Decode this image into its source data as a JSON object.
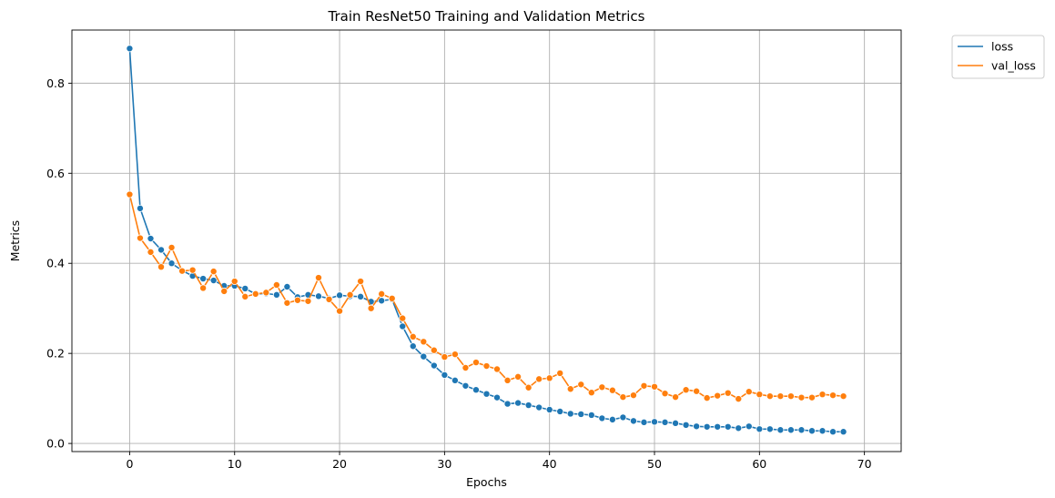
{
  "chart_data": {
    "type": "line",
    "title": "Train ResNet50 Training and Validation Metrics",
    "xlabel": "Epochs",
    "ylabel": "Metrics",
    "xlim": [
      -5.5,
      73.5
    ],
    "ylim": [
      -0.018,
      0.918
    ],
    "xticks": [
      0,
      10,
      20,
      30,
      40,
      50,
      60,
      70
    ],
    "yticks": [
      0.0,
      0.2,
      0.4,
      0.6,
      0.8
    ],
    "ytick_labels": [
      "0.0",
      "0.2",
      "0.4",
      "0.6",
      "0.8"
    ],
    "grid": true,
    "legend_position": "outside-top-right",
    "x": [
      0,
      1,
      2,
      3,
      4,
      5,
      6,
      7,
      8,
      9,
      10,
      11,
      12,
      13,
      14,
      15,
      16,
      17,
      18,
      19,
      20,
      21,
      22,
      23,
      24,
      25,
      26,
      27,
      28,
      29,
      30,
      31,
      32,
      33,
      34,
      35,
      36,
      37,
      38,
      39,
      40,
      41,
      42,
      43,
      44,
      45,
      46,
      47,
      48,
      49,
      50,
      51,
      52,
      53,
      54,
      55,
      56,
      57,
      58,
      59,
      60,
      61,
      62,
      63,
      64,
      65,
      66,
      67,
      68
    ],
    "series": [
      {
        "name": "loss",
        "color": "#1f77b4",
        "values": [
          0.877,
          0.522,
          0.455,
          0.43,
          0.4,
          0.384,
          0.372,
          0.366,
          0.362,
          0.35,
          0.35,
          0.344,
          0.332,
          0.333,
          0.33,
          0.348,
          0.325,
          0.33,
          0.327,
          0.322,
          0.329,
          0.327,
          0.326,
          0.315,
          0.317,
          0.32,
          0.26,
          0.216,
          0.193,
          0.173,
          0.152,
          0.14,
          0.128,
          0.119,
          0.11,
          0.102,
          0.088,
          0.09,
          0.085,
          0.08,
          0.075,
          0.071,
          0.066,
          0.065,
          0.063,
          0.056,
          0.053,
          0.058,
          0.05,
          0.047,
          0.048,
          0.047,
          0.045,
          0.041,
          0.038,
          0.037,
          0.037,
          0.037,
          0.034,
          0.038,
          0.032,
          0.032,
          0.03,
          0.03,
          0.03,
          0.028,
          0.028,
          0.026,
          0.026
        ]
      },
      {
        "name": "val_loss",
        "color": "#ff7f0e",
        "values": [
          0.553,
          0.456,
          0.425,
          0.392,
          0.435,
          0.383,
          0.385,
          0.345,
          0.382,
          0.338,
          0.36,
          0.326,
          0.332,
          0.335,
          0.352,
          0.312,
          0.318,
          0.316,
          0.368,
          0.32,
          0.294,
          0.33,
          0.36,
          0.3,
          0.332,
          0.322,
          0.278,
          0.237,
          0.226,
          0.207,
          0.192,
          0.198,
          0.168,
          0.18,
          0.172,
          0.165,
          0.14,
          0.148,
          0.124,
          0.143,
          0.145,
          0.156,
          0.121,
          0.131,
          0.113,
          0.125,
          0.118,
          0.103,
          0.107,
          0.128,
          0.126,
          0.111,
          0.103,
          0.119,
          0.116,
          0.101,
          0.106,
          0.112,
          0.099,
          0.115,
          0.109,
          0.105,
          0.105,
          0.105,
          0.102,
          0.102,
          0.109,
          0.107,
          0.105
        ]
      }
    ]
  }
}
